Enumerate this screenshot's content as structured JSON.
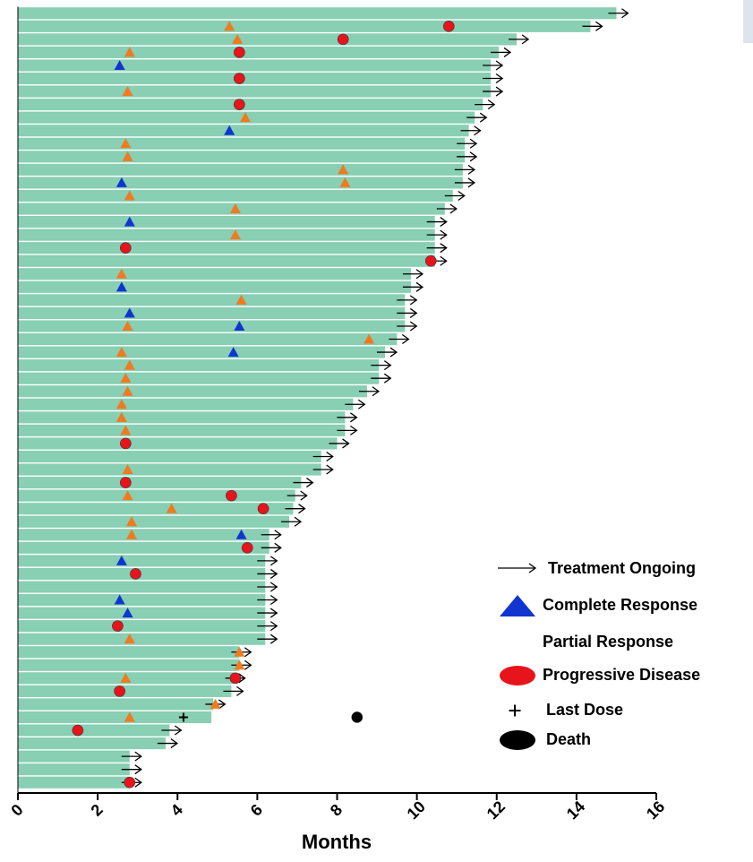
{
  "chart_data": {
    "type": "swimmer",
    "x_label": "Months",
    "xlim": [
      0,
      16
    ],
    "xticks": [
      0,
      2,
      4,
      6,
      8,
      10,
      12,
      14,
      16
    ],
    "bar_color": "#88cfb3",
    "durations": [
      15.0,
      14.35,
      12.5,
      12.05,
      11.85,
      11.85,
      11.85,
      11.65,
      11.45,
      11.3,
      11.2,
      11.2,
      11.15,
      11.15,
      10.9,
      10.7,
      10.45,
      10.45,
      10.45,
      10.45,
      9.85,
      9.85,
      9.7,
      9.7,
      9.7,
      9.5,
      9.2,
      9.05,
      9.05,
      8.75,
      8.4,
      8.2,
      8.2,
      8.0,
      7.6,
      7.6,
      7.1,
      6.95,
      6.9,
      6.8,
      6.3,
      6.3,
      6.2,
      6.2,
      6.2,
      6.2,
      6.2,
      6.2,
      6.2,
      5.55,
      5.55,
      5.4,
      5.35,
      4.9,
      4.85,
      3.8,
      3.7,
      2.8,
      2.8,
      2.8
    ],
    "ongoing_name": "Treatment Ongoing",
    "ongoing": [
      true,
      true,
      true,
      true,
      true,
      true,
      true,
      true,
      true,
      true,
      true,
      true,
      true,
      true,
      true,
      true,
      true,
      true,
      true,
      true,
      true,
      true,
      true,
      true,
      true,
      true,
      true,
      true,
      true,
      true,
      true,
      true,
      true,
      true,
      true,
      true,
      true,
      true,
      true,
      true,
      true,
      true,
      true,
      true,
      true,
      true,
      true,
      true,
      true,
      true,
      true,
      true,
      true,
      true,
      false,
      true,
      true,
      true,
      true,
      true
    ],
    "events": [
      {
        "name": "Complete Response",
        "color": "#1035d0",
        "marker": "triangle",
        "legend_marker": true,
        "rows": [
          4,
          9,
          13,
          16,
          21,
          23,
          24,
          26,
          40,
          42,
          45,
          46
        ],
        "x": [
          2.55,
          5.3,
          2.6,
          2.8,
          2.6,
          2.8,
          5.55,
          5.4,
          5.6,
          2.6,
          2.55,
          2.75
        ]
      },
      {
        "name": "Partial Response",
        "color": "#f07a1f",
        "marker": "triangle",
        "legend_marker": false,
        "rows": [
          1,
          2,
          3,
          6,
          8,
          10,
          11,
          12,
          13,
          14,
          15,
          17,
          20,
          22,
          24,
          25,
          26,
          27,
          28,
          29,
          30,
          31,
          32,
          35,
          37,
          38,
          39,
          40,
          48,
          49,
          50,
          51,
          53,
          54
        ],
        "x": [
          5.3,
          5.5,
          2.8,
          2.75,
          5.7,
          2.7,
          2.75,
          8.15,
          8.2,
          2.8,
          5.45,
          5.45,
          2.6,
          5.6,
          2.75,
          8.8,
          2.6,
          2.8,
          2.7,
          2.75,
          2.6,
          2.6,
          2.7,
          2.75,
          2.75,
          3.85,
          2.85,
          2.85,
          2.8,
          5.55,
          5.55,
          2.7,
          4.95,
          2.8
        ]
      },
      {
        "name": "Progressive Disease",
        "color": "#e8141b",
        "marker": "circle",
        "legend_marker": true,
        "rows": [
          1,
          2,
          3,
          5,
          7,
          18,
          19,
          33,
          36,
          37,
          38,
          41,
          43,
          47,
          51,
          52,
          55,
          59
        ],
        "x": [
          10.8,
          8.15,
          5.55,
          5.55,
          5.55,
          2.7,
          10.35,
          2.7,
          2.7,
          5.35,
          6.15,
          5.75,
          2.95,
          2.5,
          5.45,
          2.55,
          1.5,
          2.8
        ]
      },
      {
        "name": "Last Dose",
        "color": "#000000",
        "marker": "plus",
        "legend_marker": true,
        "rows": [
          54
        ],
        "x": [
          4.15
        ]
      },
      {
        "name": "Death",
        "color": "#000000",
        "marker": "circle",
        "legend_marker": true,
        "rows": [
          54
        ],
        "x": [
          8.5
        ]
      }
    ]
  }
}
